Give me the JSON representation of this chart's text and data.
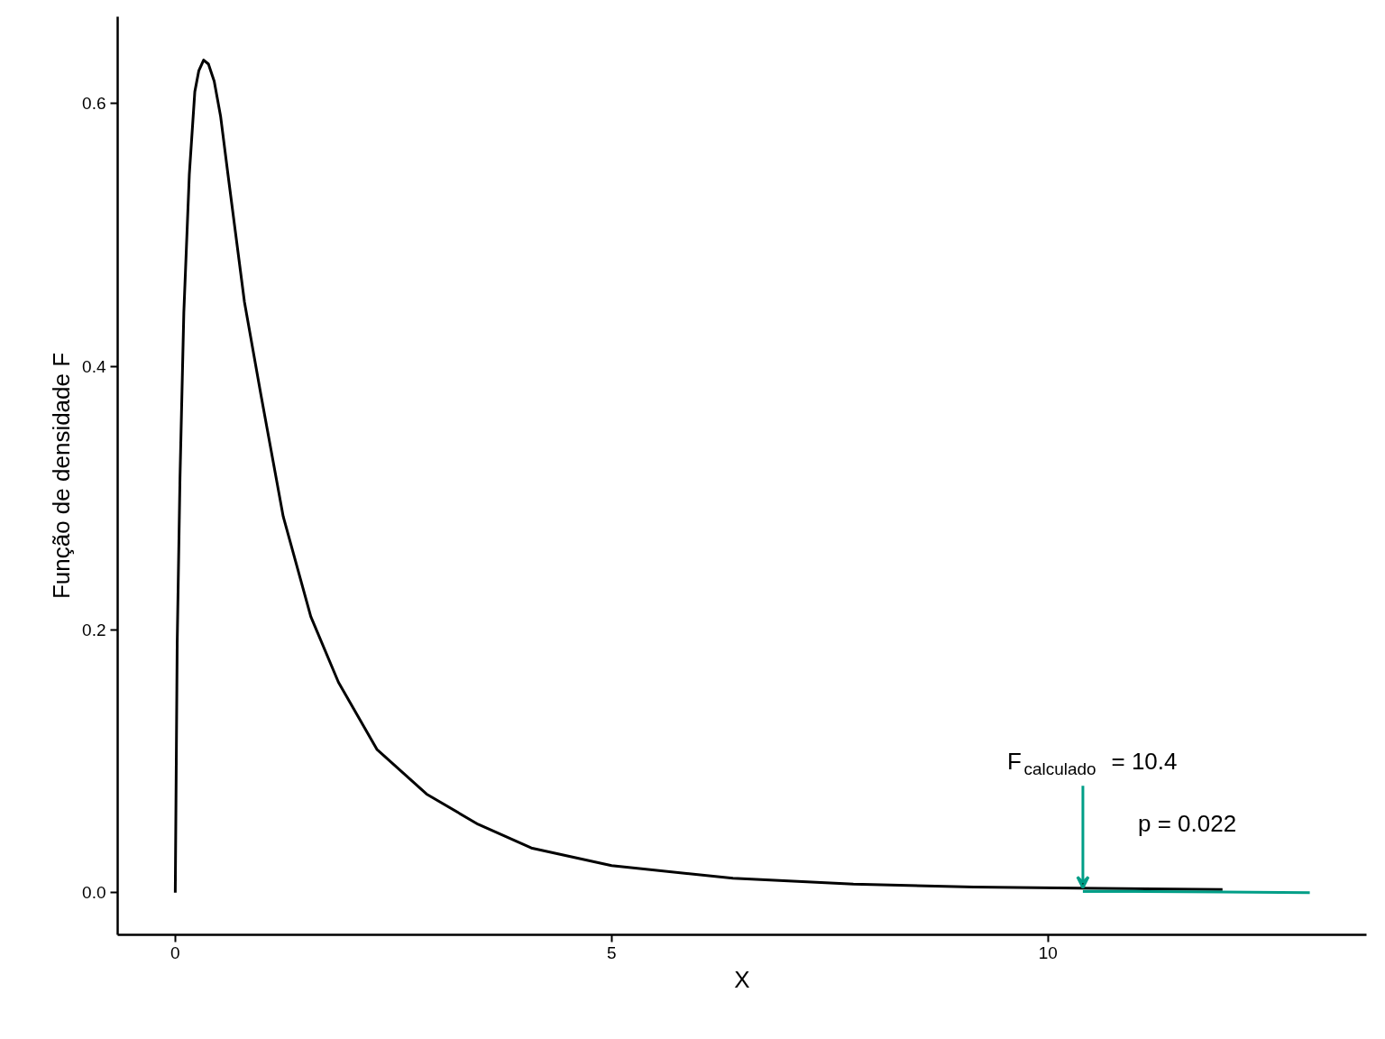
{
  "chart_data": {
    "type": "line",
    "xlabel": "X",
    "ylabel": "Função de densidade F",
    "xlim": [
      -0.66,
      13.65
    ],
    "ylim": [
      -0.032,
      0.666
    ],
    "xticks": [
      0,
      5,
      10
    ],
    "yticks": [
      {
        "value": 0,
        "label": "0.0"
      },
      0.2,
      0.4,
      0.6
    ],
    "grid": false,
    "line_style": "solid",
    "marker": "none",
    "series": [
      {
        "color": "#000000",
        "x": [
          0,
          0.022,
          0.054,
          0.098,
          0.161,
          0.224,
          0.27,
          0.325,
          0.38,
          0.446,
          0.52,
          0.604,
          0.793,
          0.983,
          1.237,
          1.553,
          1.87,
          2.31,
          2.88,
          3.47,
          4.08,
          5.0,
          6.39,
          7.77,
          9.15,
          10.35,
          12.0
        ],
        "values": [
          0,
          0.189,
          0.315,
          0.441,
          0.546,
          0.609,
          0.625,
          0.633,
          0.63,
          0.617,
          0.59,
          0.546,
          0.449,
          0.378,
          0.286,
          0.21,
          0.16,
          0.109,
          0.075,
          0.052,
          0.034,
          0.0206,
          0.011,
          0.0065,
          0.0044,
          0.0034,
          0.0025
        ]
      },
      {
        "type": "area",
        "color": "#009e87",
        "x": [
          10.4,
          11,
          12,
          13
        ],
        "values": [
          0.001,
          0.001,
          0.0005,
          0
        ]
      }
    ],
    "annotations": [
      {
        "text": "F$_{calculado}$ = 10.4",
        "x": 10.4,
        "y": 0.001
      },
      "p = 0.022"
    ]
  }
}
